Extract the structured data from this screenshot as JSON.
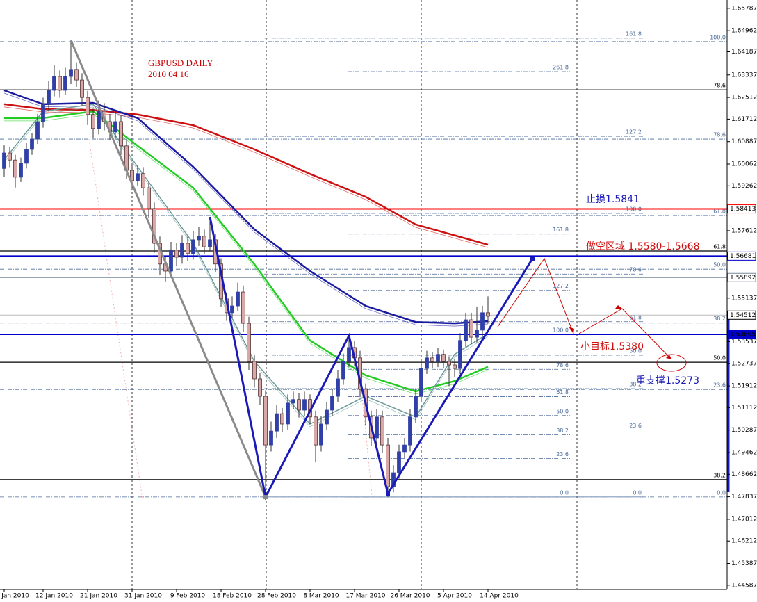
{
  "chart_data": {
    "type": "candlestick",
    "title": "GBPUSD DAILY",
    "subtitle": "2010 04 16",
    "ylim": [
      1.4443,
      1.6609
    ],
    "yticks": [
      1.65787,
      1.64962,
      1.64187,
      1.63337,
      1.62512,
      1.61712,
      1.60887,
      1.60062,
      1.59262,
      1.57612,
      1.55137,
      1.53537,
      1.52737,
      1.51912,
      1.51112,
      1.50287,
      1.49462,
      1.48662,
      1.47837,
      1.47012,
      1.46212,
      1.45387,
      1.44587
    ],
    "categories": [
      "Jan 2010",
      null,
      null,
      null,
      null,
      null,
      null,
      "12 Jan 2010",
      null,
      null,
      null,
      null,
      null,
      null,
      null,
      "21 Jan 2010",
      null,
      null,
      null,
      null,
      null,
      null,
      null,
      "31 Jan 2010",
      null,
      null,
      null,
      null,
      null,
      null,
      null,
      "9 Feb 2010",
      null,
      null,
      null,
      null,
      null,
      null,
      null,
      "18 Feb 2010",
      null,
      null,
      null,
      null,
      null,
      null,
      null,
      "28 Feb 2010",
      null,
      null,
      null,
      null,
      null,
      null,
      null,
      "8 Mar 2010",
      null,
      null,
      null,
      null,
      null,
      null,
      null,
      "17 Mar 2010",
      null,
      null,
      null,
      null,
      null,
      null,
      null,
      "26 Mar 2010",
      null,
      null,
      null,
      null,
      null,
      null,
      null,
      "5 Apr 2010",
      null,
      null,
      null,
      null,
      null,
      null,
      null,
      "14 Apr 2010"
    ],
    "bull_color": "#3140a8",
    "bear_color": "#d8a8a8",
    "ohlc": [
      [
        1.599,
        1.6075,
        1.596,
        1.6047
      ],
      [
        1.6047,
        1.607,
        1.5995,
        1.6021
      ],
      [
        1.6021,
        1.604,
        1.592,
        1.5958
      ],
      [
        1.5958,
        1.603,
        1.594,
        1.6009
      ],
      [
        1.6009,
        1.6085,
        1.599,
        1.606
      ],
      [
        1.606,
        1.612,
        1.604,
        1.6098
      ],
      [
        1.6098,
        1.619,
        1.608,
        1.6162
      ],
      [
        1.6162,
        1.625,
        1.614,
        1.6226
      ],
      [
        1.6226,
        1.631,
        1.62,
        1.6277
      ],
      [
        1.6277,
        1.637,
        1.6255,
        1.6328
      ],
      [
        1.6328,
        1.635,
        1.625,
        1.6277
      ],
      [
        1.6277,
        1.636,
        1.626,
        1.6328
      ],
      [
        1.6328,
        1.6456,
        1.63,
        1.6354
      ],
      [
        1.6354,
        1.638,
        1.629,
        1.6315
      ],
      [
        1.6315,
        1.634,
        1.622,
        1.6251
      ],
      [
        1.6251,
        1.6275,
        1.615,
        1.6188
      ],
      [
        1.6188,
        1.621,
        1.61,
        1.6137
      ],
      [
        1.6137,
        1.624,
        1.6115,
        1.62
      ],
      [
        1.62,
        1.623,
        1.613,
        1.6162
      ],
      [
        1.6162,
        1.619,
        1.6095,
        1.6124
      ],
      [
        1.6124,
        1.62,
        1.61,
        1.6162
      ],
      [
        1.6162,
        1.6185,
        1.604,
        1.6073
      ],
      [
        1.6073,
        1.6095,
        1.595,
        1.5983
      ],
      [
        1.5983,
        1.601,
        1.5915,
        1.5945
      ],
      [
        1.5945,
        1.6,
        1.5925,
        1.5971
      ],
      [
        1.5971,
        1.5995,
        1.589,
        1.5919
      ],
      [
        1.5919,
        1.594,
        1.581,
        1.5843
      ],
      [
        1.5843,
        1.5865,
        1.568,
        1.5715
      ],
      [
        1.5715,
        1.574,
        1.56,
        1.5639
      ],
      [
        1.5639,
        1.5665,
        1.5575,
        1.5613
      ],
      [
        1.5613,
        1.572,
        1.559,
        1.569
      ],
      [
        1.569,
        1.5715,
        1.563,
        1.5664
      ],
      [
        1.5664,
        1.5745,
        1.564,
        1.5715
      ],
      [
        1.5715,
        1.574,
        1.565,
        1.5677
      ],
      [
        1.5677,
        1.576,
        1.5655,
        1.5728
      ],
      [
        1.5728,
        1.5775,
        1.5705,
        1.5741
      ],
      [
        1.5741,
        1.5765,
        1.5675,
        1.5702
      ],
      [
        1.5702,
        1.5812,
        1.5685,
        1.5728
      ],
      [
        1.5728,
        1.575,
        1.561,
        1.5639
      ],
      [
        1.5639,
        1.566,
        1.548,
        1.5511
      ],
      [
        1.5511,
        1.5535,
        1.543,
        1.546
      ],
      [
        1.546,
        1.552,
        1.544,
        1.5485
      ],
      [
        1.5485,
        1.557,
        1.5465,
        1.5536
      ],
      [
        1.5536,
        1.556,
        1.539,
        1.5421
      ],
      [
        1.5421,
        1.5445,
        1.525,
        1.5281
      ],
      [
        1.5281,
        1.5305,
        1.5185,
        1.5217
      ],
      [
        1.5217,
        1.524,
        1.512,
        1.5153
      ],
      [
        1.5153,
        1.5175,
        1.4783,
        1.4974
      ],
      [
        1.4974,
        1.506,
        1.495,
        1.5025
      ],
      [
        1.5025,
        1.512,
        1.5,
        1.5089
      ],
      [
        1.5089,
        1.511,
        1.502,
        1.5051
      ],
      [
        1.5051,
        1.516,
        1.503,
        1.5128
      ],
      [
        1.5128,
        1.517,
        1.5105,
        1.5141
      ],
      [
        1.5141,
        1.5165,
        1.5075,
        1.5102
      ],
      [
        1.5102,
        1.517,
        1.508,
        1.5141
      ],
      [
        1.5141,
        1.516,
        1.505,
        1.5077
      ],
      [
        1.5077,
        1.51,
        1.491,
        1.4974
      ],
      [
        1.4974,
        1.508,
        1.495,
        1.5051
      ],
      [
        1.5051,
        1.513,
        1.503,
        1.5102
      ],
      [
        1.5102,
        1.518,
        1.508,
        1.5153
      ],
      [
        1.5153,
        1.525,
        1.513,
        1.5217
      ],
      [
        1.5217,
        1.531,
        1.5195,
        1.5281
      ],
      [
        1.5281,
        1.5365,
        1.526,
        1.5332
      ],
      [
        1.5332,
        1.5355,
        1.5265,
        1.5294
      ],
      [
        1.5294,
        1.532,
        1.515,
        1.5179
      ],
      [
        1.5179,
        1.52,
        1.5045,
        1.5077
      ],
      [
        1.5077,
        1.51,
        1.497,
        1.5
      ],
      [
        1.5,
        1.5105,
        1.498,
        1.5077
      ],
      [
        1.5077,
        1.51,
        1.4945,
        1.4974
      ],
      [
        1.4974,
        1.5,
        1.4783,
        1.4821
      ],
      [
        1.4821,
        1.49,
        1.48,
        1.4872
      ],
      [
        1.4872,
        1.4975,
        1.485,
        1.4949
      ],
      [
        1.4949,
        1.5,
        1.4925,
        1.4974
      ],
      [
        1.4974,
        1.5105,
        1.495,
        1.5077
      ],
      [
        1.5077,
        1.518,
        1.5055,
        1.5153
      ],
      [
        1.5153,
        1.5285,
        1.513,
        1.5255
      ],
      [
        1.5255,
        1.532,
        1.5235,
        1.5294
      ],
      [
        1.5294,
        1.5315,
        1.5255,
        1.5281
      ],
      [
        1.5281,
        1.533,
        1.526,
        1.5307
      ],
      [
        1.5307,
        1.5325,
        1.5255,
        1.5281
      ],
      [
        1.5281,
        1.53,
        1.519,
        1.5268
      ],
      [
        1.5268,
        1.529,
        1.5225,
        1.5255
      ],
      [
        1.5255,
        1.5385,
        1.5235,
        1.5358
      ],
      [
        1.5358,
        1.546,
        1.5335,
        1.5434
      ],
      [
        1.5434,
        1.546,
        1.5345,
        1.537
      ],
      [
        1.537,
        1.548,
        1.535,
        1.5396
      ],
      [
        1.5396,
        1.5485,
        1.5375,
        1.546
      ],
      [
        1.546,
        1.552,
        1.542,
        1.5447
      ]
    ],
    "moving_averages": [
      {
        "color": "#cc1111",
        "width": 2.5,
        "x": [
          0,
          7,
          16,
          24,
          34,
          45,
          55,
          65,
          74,
          87
        ],
        "values": [
          1.6226,
          1.6208,
          1.6205,
          1.6188,
          1.6149,
          1.606,
          1.597,
          1.5886,
          1.5784,
          1.571
        ]
      },
      {
        "color": "#1a1aa0",
        "width": 2.5,
        "x": [
          0,
          7,
          16,
          24,
          34,
          45,
          55,
          65,
          74,
          81,
          87
        ],
        "values": [
          1.6277,
          1.6226,
          1.6231,
          1.6175,
          1.5996,
          1.5766,
          1.5613,
          1.5485,
          1.5426,
          1.5421,
          1.5429
        ]
      },
      {
        "color": "#22cc22",
        "width": 2.5,
        "x": [
          0,
          7,
          16,
          24,
          34,
          45,
          55,
          65,
          74,
          81,
          87
        ],
        "values": [
          1.6175,
          1.6175,
          1.62,
          1.6073,
          1.5919,
          1.5638,
          1.5358,
          1.523,
          1.5171,
          1.5209,
          1.5261
        ]
      },
      {
        "color": "#6a9a9a",
        "width": 1.5,
        "x": [
          0,
          7,
          16,
          24,
          34,
          45,
          55,
          65,
          74,
          81,
          87
        ],
        "values": [
          1.6022,
          1.62,
          1.6226,
          1.5996,
          1.5715,
          1.5281,
          1.5051,
          1.5153,
          1.5077,
          1.5307,
          1.5383
        ]
      }
    ],
    "hlines": [
      {
        "price": 1.58413,
        "color": "#ff0000",
        "tag": true
      },
      {
        "price": 1.56681,
        "color": "#0000cc",
        "tag": true
      },
      {
        "price": 1.55892,
        "color": "#778899",
        "tag": true
      },
      {
        "price": 1.54512,
        "color": "#bbbbbb",
        "tag": true
      },
      {
        "price": 1.53805,
        "color": "#0000cc",
        "tag": true
      }
    ],
    "fibs": [
      {
        "color": "#000000",
        "style": "solid",
        "levels": [
          {
            "ratio": "78.6",
            "price": 1.6279
          },
          {
            "ratio": "61.8",
            "price": 1.5687
          },
          {
            "ratio": "50.0",
            "price": 1.5278
          },
          {
            "ratio": "38.2",
            "price": 1.4847
          }
        ]
      },
      {
        "color": "#4a6a9a",
        "style": "dash",
        "levels": [
          {
            "ratio": "100.0",
            "price": 1.6456
          },
          {
            "ratio": "78.6",
            "price": 1.6098
          },
          {
            "ratio": "61.8",
            "price": 1.5817
          },
          {
            "ratio": "50.0",
            "price": 1.562
          },
          {
            "ratio": "38.2",
            "price": 1.5422
          },
          {
            "ratio": "23.6",
            "price": 1.5178
          },
          {
            "ratio": "0.0",
            "price": 1.4783
          }
        ]
      },
      {
        "color": "#4a6a9a",
        "style": "dash",
        "levels": [
          {
            "ratio": "161.8",
            "price": 1.6469
          },
          {
            "ratio": "127.2",
            "price": 1.6108
          },
          {
            "ratio": "100.0",
            "price": 1.5825
          },
          {
            "ratio": "78.6",
            "price": 1.5602
          },
          {
            "ratio": "61.8",
            "price": 1.5427
          },
          {
            "ratio": "50.0",
            "price": 1.5304
          },
          {
            "ratio": "38.2",
            "price": 1.5181
          },
          {
            "ratio": "23.6",
            "price": 1.5029
          },
          {
            "ratio": "0.0",
            "price": 1.4783
          }
        ]
      },
      {
        "color": "#4a6a9a",
        "style": "dash",
        "levels": [
          {
            "ratio": "261.8",
            "price": 1.6346
          },
          {
            "ratio": "161.8",
            "price": 1.5749
          },
          {
            "ratio": "127.2",
            "price": 1.5542
          },
          {
            "ratio": "100.0",
            "price": 1.538
          },
          {
            "ratio": "78.6",
            "price": 1.5252
          },
          {
            "ratio": "61.8",
            "price": 1.5152
          },
          {
            "ratio": "50.0",
            "price": 1.5082
          },
          {
            "ratio": "38.2",
            "price": 1.5011
          },
          {
            "ratio": "23.6",
            "price": 1.4924
          },
          {
            "ratio": "0.0",
            "price": 1.4783
          }
        ]
      }
    ],
    "annotations": [
      "止损1.5841",
      "做空区域 1.5580-1.5668",
      "小目标1.5380",
      "重支撑1.5273"
    ]
  }
}
